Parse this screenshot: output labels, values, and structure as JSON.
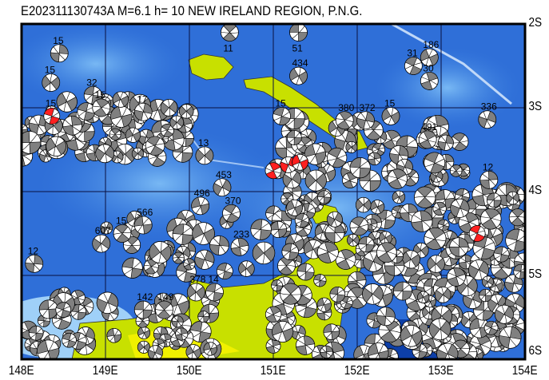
{
  "title": "E202311130743A M=6.1 h= 10 NEW IRELAND REGION, P.N.G.",
  "map": {
    "lon_range": [
      148,
      154
    ],
    "lat_range": [
      -2,
      -6
    ],
    "lon_labels": [
      "148E",
      "149E",
      "150E",
      "151E",
      "152E",
      "153E",
      "154E"
    ],
    "lat_labels": [
      "2S",
      "3S",
      "4S",
      "5S",
      "6S"
    ],
    "colors": {
      "ocean": "#2f6fd8",
      "shallow": "#6fb0f0",
      "land": "#c8e000",
      "land_high": "#f0f000",
      "grid": "#0a1040",
      "compression": "#808080",
      "main_event": "#ff2020"
    }
  },
  "events": [
    {
      "lon": 151.3,
      "lat": -2.1,
      "depth": "51",
      "main": false
    },
    {
      "lon": 150.48,
      "lat": -2.1,
      "depth": "11",
      "main": false
    },
    {
      "lon": 148.45,
      "lat": -2.35,
      "depth": "15",
      "main": false
    },
    {
      "lon": 148.35,
      "lat": -2.7,
      "depth": "15",
      "main": false
    },
    {
      "lon": 148.85,
      "lat": -2.85,
      "depth": "32",
      "main": false
    },
    {
      "lon": 148.95,
      "lat": -3.0,
      "depth": "15",
      "main": false
    },
    {
      "lon": 149.45,
      "lat": -3.05,
      "depth": "17",
      "main": false
    },
    {
      "lon": 151.3,
      "lat": -2.62,
      "depth": "434",
      "main": false
    },
    {
      "lon": 151.1,
      "lat": -3.1,
      "depth": "15",
      "main": false
    },
    {
      "lon": 152.84,
      "lat": -3.38,
      "depth": "491",
      "main": false
    },
    {
      "lon": 153.55,
      "lat": -3.14,
      "depth": "336",
      "main": false
    },
    {
      "lon": 152.86,
      "lat": -2.4,
      "depth": "186",
      "main": false
    },
    {
      "lon": 152.67,
      "lat": -2.5,
      "depth": "31",
      "main": false
    },
    {
      "lon": 152.86,
      "lat": -2.68,
      "depth": "30",
      "main": false
    },
    {
      "lon": 150.39,
      "lat": -3.95,
      "depth": "453",
      "main": false
    },
    {
      "lon": 150.13,
      "lat": -4.17,
      "depth": "496",
      "main": false
    },
    {
      "lon": 150.5,
      "lat": -4.26,
      "depth": "370",
      "main": false
    },
    {
      "lon": 150.6,
      "lat": -4.66,
      "depth": "233",
      "main": false
    },
    {
      "lon": 148.95,
      "lat": -4.62,
      "depth": "607",
      "main": false
    },
    {
      "lon": 149.45,
      "lat": -4.4,
      "depth": "566",
      "main": false
    },
    {
      "lon": 149.2,
      "lat": -4.5,
      "depth": "15",
      "main": false
    },
    {
      "lon": 153.57,
      "lat": -3.86,
      "depth": "12",
      "main": false
    },
    {
      "lon": 150.18,
      "lat": -3.57,
      "depth": "13",
      "main": false
    },
    {
      "lon": 149.45,
      "lat": -5.41,
      "depth": "142",
      "main": false
    },
    {
      "lon": 149.7,
      "lat": -5.41,
      "depth": "149",
      "main": false
    },
    {
      "lon": 148.15,
      "lat": -4.86,
      "depth": "12",
      "main": false
    },
    {
      "lon": 150.08,
      "lat": -5.2,
      "depth": "378",
      "main": false
    },
    {
      "lon": 150.3,
      "lat": -5.2,
      "depth": "14",
      "main": false
    },
    {
      "lon": 151.85,
      "lat": -3.15,
      "depth": "380",
      "main": false
    },
    {
      "lon": 152.1,
      "lat": -3.15,
      "depth": "372",
      "main": false
    },
    {
      "lon": 152.4,
      "lat": -3.1,
      "depth": "15",
      "main": false
    },
    {
      "lon": 148.36,
      "lat": -3.1,
      "depth": "15",
      "main": true
    },
    {
      "lon": 151.0,
      "lat": -3.75,
      "depth": "",
      "main": true
    },
    {
      "lon": 151.18,
      "lat": -3.68,
      "depth": "",
      "main": true
    },
    {
      "lon": 151.32,
      "lat": -3.65,
      "depth": "",
      "main": true
    },
    {
      "lon": 153.43,
      "lat": -4.5,
      "depth": "",
      "main": true
    }
  ]
}
